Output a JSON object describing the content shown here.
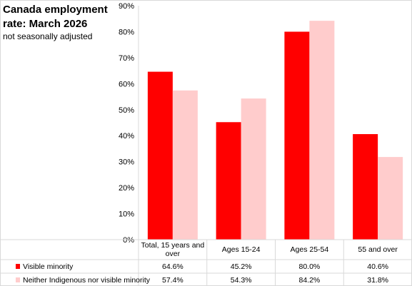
{
  "chart_data": {
    "type": "bar",
    "title": "Canada employment rate: March 2026",
    "subtitle": "not seasonally adjusted",
    "categories": [
      "Total, 15 years and over",
      "Ages 15-24",
      "Ages 25-54",
      "55 and over"
    ],
    "series": [
      {
        "name": "Visible minority",
        "values": [
          64.6,
          45.2,
          80.0,
          40.6
        ],
        "labels": [
          "64.6%",
          "45.2%",
          "80.0%",
          "40.6%"
        ],
        "color": "#ff0000"
      },
      {
        "name": "Neither Indigenous nor visible minority",
        "values": [
          57.4,
          54.3,
          84.2,
          31.8
        ],
        "labels": [
          "57.4%",
          "54.3%",
          "84.2%",
          "31.8%"
        ],
        "color": "#ffcccc"
      }
    ],
    "ylim": [
      0,
      90
    ],
    "yticks": [
      0,
      10,
      20,
      30,
      40,
      50,
      60,
      70,
      80,
      90
    ],
    "ytick_labels": [
      "0%",
      "10%",
      "20%",
      "30%",
      "40%",
      "50%",
      "60%",
      "70%",
      "80%",
      "90%"
    ],
    "grid": false,
    "legend": "bottom data table"
  }
}
